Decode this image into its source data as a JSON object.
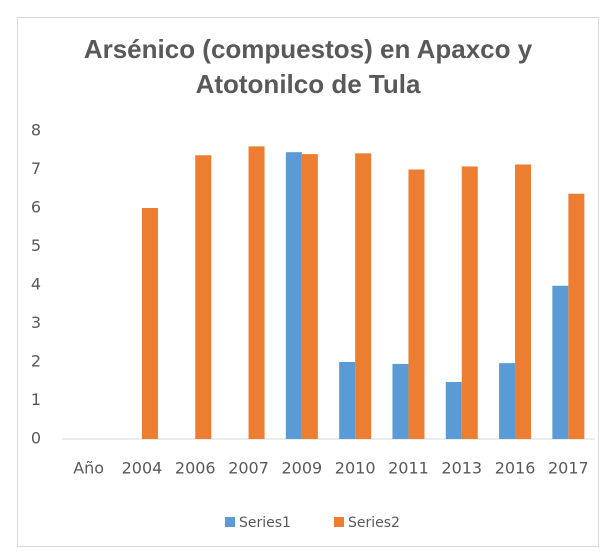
{
  "chart_data": {
    "type": "bar",
    "title": "Arsénico (compuestos) en Apaxco y Atotonilco de Tula",
    "categories": [
      "Año",
      "2004",
      "2006",
      "2007",
      "2009",
      "2010",
      "2011",
      "2013",
      "2016",
      "2017"
    ],
    "series": [
      {
        "name": "Series1",
        "color": "#5b9bd5",
        "values": [
          null,
          null,
          null,
          null,
          7.45,
          2.0,
          1.95,
          1.48,
          1.97,
          3.98
        ]
      },
      {
        "name": "Series2",
        "color": "#ed7d31",
        "values": [
          null,
          6.0,
          7.37,
          7.6,
          7.4,
          7.42,
          7.0,
          7.08,
          7.13,
          6.37
        ]
      }
    ],
    "ylim": [
      0,
      8
    ],
    "yticks": [
      0,
      1,
      2,
      3,
      4,
      5,
      6,
      7,
      8
    ],
    "grid": false,
    "legend": "bottom"
  }
}
